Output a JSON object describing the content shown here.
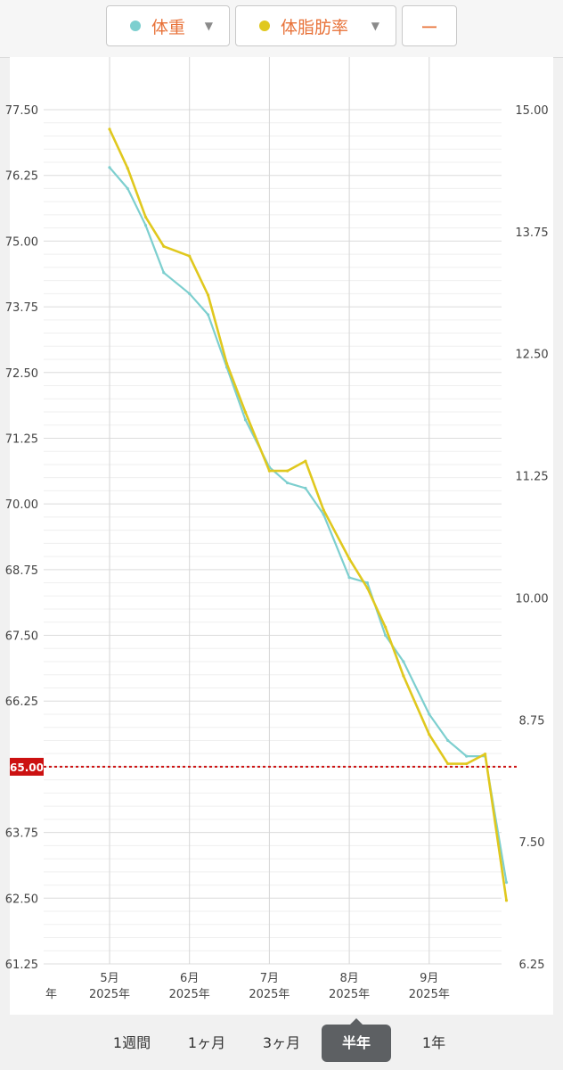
{
  "filters": {
    "weight": {
      "label": "体重",
      "color": "#7dcfcf"
    },
    "bodyfat": {
      "label": "体脂肪率",
      "color": "#e0c81e"
    },
    "extra": {
      "label": "ー"
    }
  },
  "chart_data": {
    "type": "line",
    "title": "",
    "xlabel": "",
    "ylabel": "",
    "x_ticks": [
      {
        "l1": "5月",
        "l2": "2025年"
      },
      {
        "l1": "6月",
        "l2": "2025年"
      },
      {
        "l1": "7月",
        "l2": "2025年"
      },
      {
        "l1": "8月",
        "l2": "2025年"
      },
      {
        "l1": "9月",
        "l2": "2025年"
      }
    ],
    "x_edge_label": "年",
    "y_left": {
      "ylim": [
        61.25,
        77.5
      ],
      "ticks": [
        "61.25",
        "62.50",
        "63.75",
        "65.00",
        "66.25",
        "67.50",
        "68.75",
        "70.00",
        "71.25",
        "72.50",
        "73.75",
        "75.00",
        "76.25",
        "77.50"
      ]
    },
    "y_right": {
      "ylim": [
        6.25,
        15.0
      ],
      "ticks": [
        "6.25",
        "7.50",
        "8.75",
        "10.00",
        "11.25",
        "12.50",
        "13.75",
        "15.00"
      ]
    },
    "target": {
      "value": 65.0,
      "label": "65.00",
      "color": "#cc1111"
    },
    "grid": true,
    "series": [
      {
        "name": "体重",
        "axis": "left",
        "color": "#7dcfcf",
        "x": [
          "2025-05-01",
          "2025-05-08",
          "2025-05-15",
          "2025-05-22",
          "2025-06-01",
          "2025-06-08",
          "2025-06-15",
          "2025-06-22",
          "2025-07-01",
          "2025-07-08",
          "2025-07-15",
          "2025-07-22",
          "2025-08-01",
          "2025-08-08",
          "2025-08-15",
          "2025-08-22",
          "2025-09-01",
          "2025-09-08",
          "2025-09-15",
          "2025-09-22",
          "2025-09-30"
        ],
        "values": [
          76.4,
          76.0,
          75.3,
          74.4,
          74.0,
          73.6,
          72.6,
          71.6,
          70.7,
          70.4,
          70.3,
          69.8,
          68.6,
          68.5,
          67.5,
          67.0,
          66.0,
          65.5,
          65.2,
          65.2,
          62.8
        ]
      },
      {
        "name": "体脂肪率",
        "axis": "right",
        "color": "#e0c81e",
        "x": [
          "2025-05-01",
          "2025-05-08",
          "2025-05-15",
          "2025-05-22",
          "2025-06-01",
          "2025-06-08",
          "2025-06-15",
          "2025-06-22",
          "2025-07-01",
          "2025-07-08",
          "2025-07-15",
          "2025-07-22",
          "2025-08-01",
          "2025-08-08",
          "2025-08-15",
          "2025-08-22",
          "2025-09-01",
          "2025-09-08",
          "2025-09-15",
          "2025-09-22",
          "2025-09-30"
        ],
        "values": [
          14.8,
          14.4,
          13.9,
          13.6,
          13.5,
          13.1,
          12.4,
          11.9,
          11.3,
          11.3,
          11.4,
          10.9,
          10.4,
          10.1,
          9.7,
          9.2,
          8.6,
          8.3,
          8.3,
          8.4,
          6.9
        ]
      }
    ]
  },
  "bottom_tabs": [
    {
      "label": "1週間",
      "active": false
    },
    {
      "label": "1ヶ月",
      "active": false
    },
    {
      "label": "3ヶ月",
      "active": false
    },
    {
      "label": "半年",
      "active": true
    },
    {
      "label": "1年",
      "active": false
    }
  ]
}
